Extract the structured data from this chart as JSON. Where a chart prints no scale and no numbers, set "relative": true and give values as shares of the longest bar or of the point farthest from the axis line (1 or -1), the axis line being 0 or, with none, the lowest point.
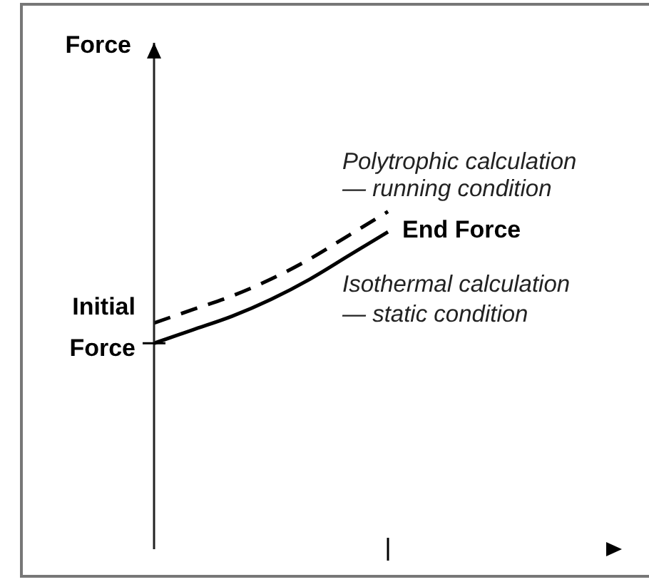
{
  "chart_data": {
    "type": "line",
    "relative": true,
    "categories": [
      null,
      null,
      null,
      null,
      null,
      null,
      null,
      null,
      null,
      null,
      null,
      null,
      null
    ],
    "series": [
      {
        "name": "Polytrophic calculation\n— running condition",
        "color": "#000000",
        "line_style": "dashed",
        "values": [
          0.67,
          0.71,
          0.75,
          0.8,
          0.86,
          0.93,
          1,
          null,
          null,
          null,
          null,
          null,
          null
        ]
      },
      {
        "name": "Isothermal calculation\n— static condition",
        "color": "#000000",
        "line_style": "solid",
        "values": [
          0.61,
          0.65,
          0.69,
          0.74,
          0.8,
          0.87,
          0.94,
          null,
          null,
          null,
          null,
          null,
          null
        ]
      }
    ],
    "annotations": [
      "Force",
      "Initial\nForce",
      "End Force"
    ]
  }
}
